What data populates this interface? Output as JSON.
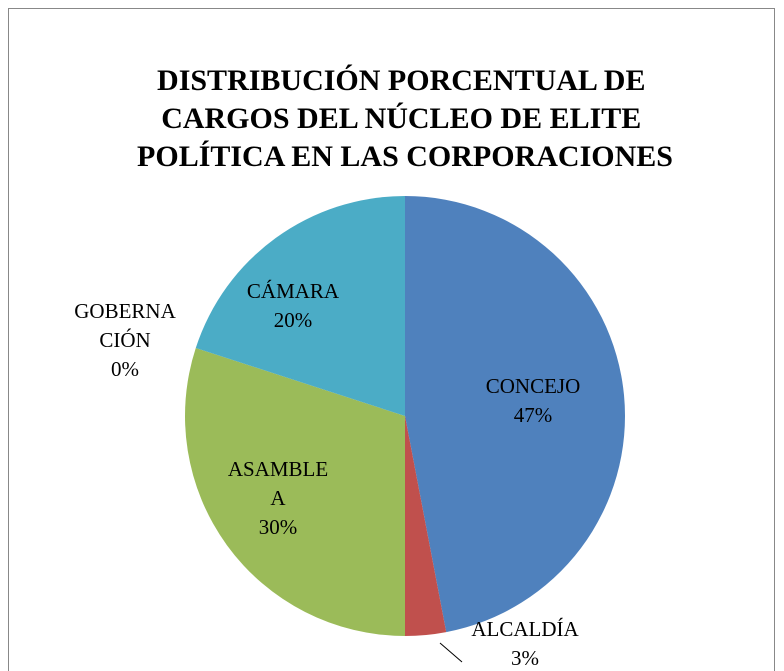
{
  "chart_data": {
    "type": "pie",
    "title": "DISTRIBUCIÓN PORCENTUAL DE CARGOS DEL NÚCLEO DE ELITE POLÍTICA EN LAS CORPORACIONES",
    "categories": [
      "CONCEJO",
      "ALCALDÍA",
      "ASAMBLEA",
      "GOBERNACIÓN",
      "CÁMARA"
    ],
    "values": [
      47,
      3,
      30,
      0,
      20
    ],
    "value_labels": [
      "47%",
      "3%",
      "30%",
      "0%",
      "20%"
    ],
    "colors": [
      "#4f81bd",
      "#c0504d",
      "#9bbb59",
      "#8064a2",
      "#4bacc6"
    ]
  }
}
